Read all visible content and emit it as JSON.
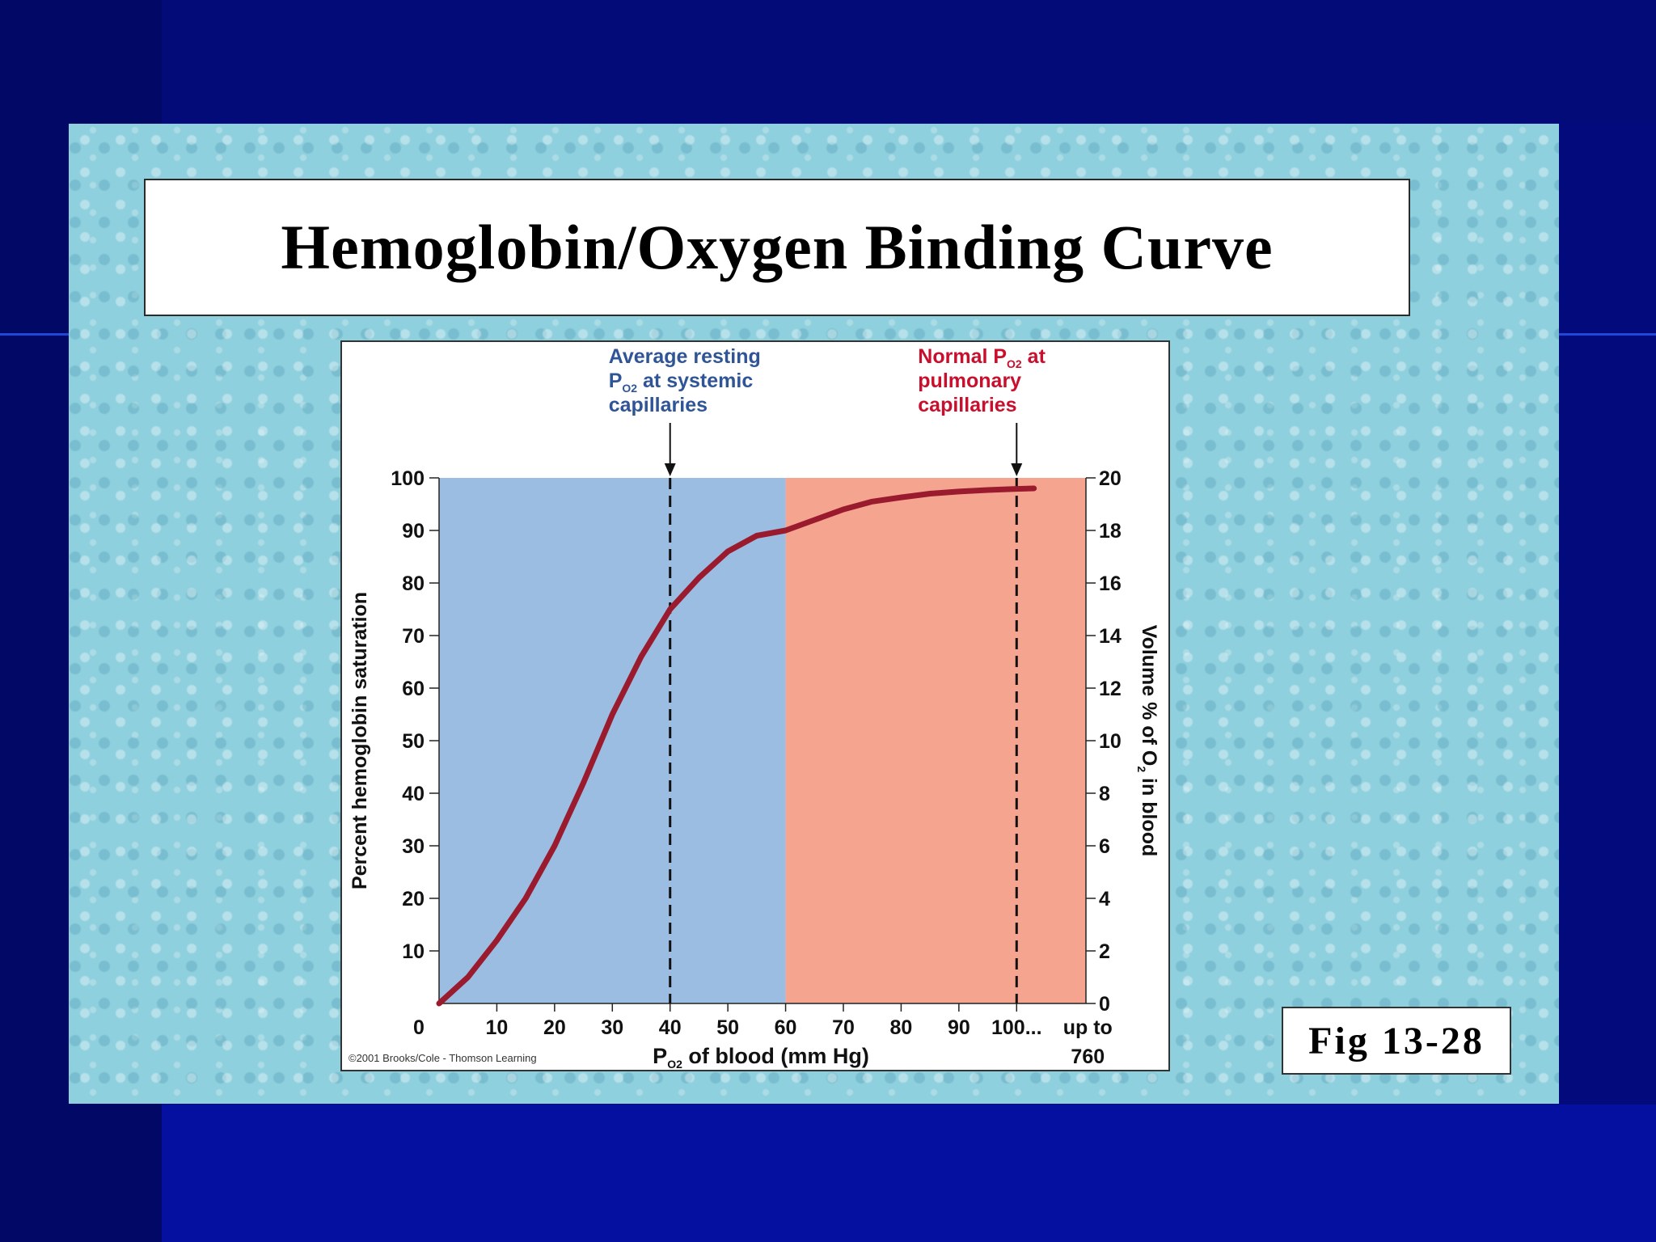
{
  "slide": {
    "title": "Hemoglobin/Oxygen Binding Curve",
    "figure_label": "Fig 13-28"
  },
  "colors": {
    "blue_region": "#9bbde2",
    "red_region": "#f5a58f",
    "curve": "#9b1b2e",
    "annotation_blue": "#2f5597",
    "annotation_red": "#c8102e"
  },
  "chart_data": {
    "type": "line",
    "x_tick_labels": [
      "0",
      "10",
      "20",
      "30",
      "40",
      "50",
      "60",
      "70",
      "80",
      "90",
      "100..."
    ],
    "x_tick_values": [
      0,
      10,
      20,
      30,
      40,
      50,
      60,
      70,
      80,
      90,
      100
    ],
    "x_tick_extra": [
      "up to",
      "760"
    ],
    "xlim": [
      0,
      112
    ],
    "ylim": [
      0,
      100
    ],
    "y_left_ticks": [
      10,
      20,
      30,
      40,
      50,
      60,
      70,
      80,
      90,
      100
    ],
    "y_right_ticks": [
      0,
      2,
      4,
      6,
      8,
      10,
      12,
      14,
      16,
      18,
      20
    ],
    "x_label_main": "P",
    "x_label_sub": "O2",
    "x_label_rest": " of blood (mm Hg)",
    "y_label_left": "Percent hemoglobin saturation",
    "y_label_right_pre": "Volume % of O",
    "y_label_right_sub": "2",
    "y_label_right_post": " in blood",
    "regions": [
      {
        "from": 0,
        "to": 60,
        "color": "blue"
      },
      {
        "from": 60,
        "to": 112,
        "color": "red"
      }
    ],
    "markers": [
      {
        "x": 40,
        "lines": [
          "Average resting",
          "P",
          "O2",
          " at systemic",
          "capillaries"
        ],
        "color": "blue"
      },
      {
        "x": 100,
        "lines": [
          "Normal P",
          "O2",
          " at",
          "pulmonary",
          "capillaries"
        ],
        "color": "red"
      }
    ],
    "series": [
      {
        "x": [
          0,
          5,
          10,
          15,
          20,
          25,
          30,
          35,
          40,
          45,
          50,
          55,
          60,
          65,
          70,
          75,
          80,
          85,
          90,
          95,
          100,
          103
        ],
        "y": [
          0,
          5,
          12,
          20,
          30,
          42,
          55,
          66,
          75,
          81,
          86,
          89,
          90,
          92,
          94,
          95.5,
          96.3,
          97,
          97.4,
          97.7,
          97.9,
          98
        ]
      }
    ],
    "copyright": "©2001 Brooks/Cole - Thomson Learning"
  }
}
